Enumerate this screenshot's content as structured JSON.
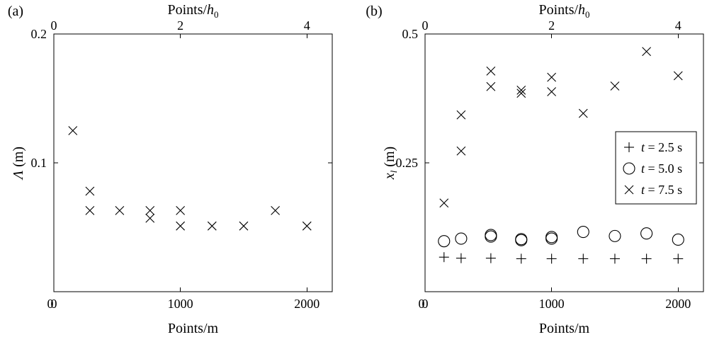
{
  "chart_data": [
    {
      "panel_label": "(a)",
      "type": "scatter",
      "xlabel": "Points/m",
      "top_xlabel": "Points/h0",
      "ylabel": "Λ (m)",
      "xlim": [
        0,
        2200
      ],
      "ylim": [
        0,
        0.2
      ],
      "top_xlim": [
        0,
        4.4
      ],
      "xticks": [
        "0",
        "1000",
        "2000"
      ],
      "top_xticks": [
        "0",
        "2",
        "4"
      ],
      "yticks": [
        "0.1",
        "0.2"
      ],
      "grid": false,
      "series": [
        {
          "marker": "x",
          "x": [
            150,
            285,
            285,
            520,
            760,
            760,
            1000,
            1000,
            1250,
            1500,
            1750,
            2000
          ],
          "y": [
            0.125,
            0.078,
            0.063,
            0.063,
            0.063,
            0.057,
            0.063,
            0.051,
            0.051,
            0.051,
            0.063,
            0.051
          ]
        }
      ]
    },
    {
      "panel_label": "(b)",
      "type": "scatter",
      "xlabel": "Points/m",
      "top_xlabel": "Points/h0",
      "ylabel": "x_l (m)",
      "xlim": [
        0,
        2200
      ],
      "ylim": [
        0,
        0.5
      ],
      "top_xlim": [
        0,
        4.4
      ],
      "xticks": [
        "0",
        "1000",
        "2000"
      ],
      "top_xticks": [
        "0",
        "2",
        "4"
      ],
      "yticks": [
        "0.25",
        "0.5"
      ],
      "grid": false,
      "legend_position": "right",
      "series": [
        {
          "name": "t = 2.5 s",
          "marker": "+",
          "x": [
            150,
            285,
            520,
            760,
            1000,
            1250,
            1500,
            1750,
            2000
          ],
          "y": [
            0.067,
            0.065,
            0.065,
            0.064,
            0.064,
            0.064,
            0.064,
            0.064,
            0.064
          ]
        },
        {
          "name": "t = 5.0 s",
          "marker": "o",
          "x": [
            150,
            285,
            520,
            520,
            760,
            760,
            1000,
            1000,
            1250,
            1500,
            1750,
            2000
          ],
          "y": [
            0.098,
            0.103,
            0.11,
            0.107,
            0.102,
            0.1,
            0.106,
            0.103,
            0.116,
            0.108,
            0.113,
            0.101
          ]
        },
        {
          "name": "t = 7.5 s",
          "marker": "x",
          "x": [
            150,
            285,
            285,
            520,
            520,
            760,
            760,
            1000,
            1000,
            1250,
            1500,
            1750,
            2000
          ],
          "y": [
            0.172,
            0.273,
            0.343,
            0.398,
            0.428,
            0.385,
            0.391,
            0.388,
            0.416,
            0.346,
            0.399,
            0.466,
            0.419
          ]
        }
      ]
    }
  ]
}
